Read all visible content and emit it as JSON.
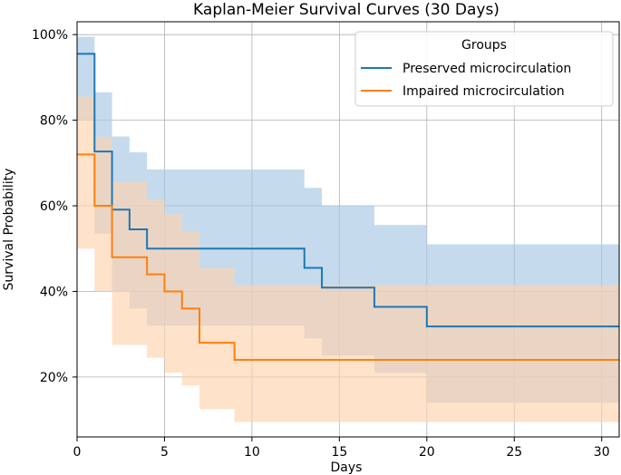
{
  "chart_data": {
    "type": "line",
    "title": "Kaplan-Meier Survival Curves (30 Days)",
    "xlabel": "Days",
    "ylabel": "Survival Probability",
    "xlim": [
      0,
      31
    ],
    "ylim": [
      0.06,
      1.03
    ],
    "x_ticks": [
      0,
      5,
      10,
      15,
      20,
      25,
      30
    ],
    "y_ticks": [
      0.2,
      0.4,
      0.6,
      0.8,
      1.0
    ],
    "y_tick_labels": [
      "20%",
      "40%",
      "60%",
      "80%",
      "100%"
    ],
    "grid": true,
    "legend": {
      "title": "Groups",
      "placement": "top-right"
    },
    "series": [
      {
        "name": "Preserved microcirculation",
        "color": "#1f77b4",
        "band_color": "#a6c8e3",
        "steps": [
          [
            0,
            0.955
          ],
          [
            1,
            0.727
          ],
          [
            2,
            0.591
          ],
          [
            3,
            0.545
          ],
          [
            4,
            0.5
          ],
          [
            13,
            0.455
          ],
          [
            14,
            0.409
          ],
          [
            17,
            0.364
          ],
          [
            20,
            0.318
          ],
          [
            31,
            0.318
          ]
        ],
        "lower": [
          [
            0,
            0.8
          ],
          [
            1,
            0.535
          ],
          [
            2,
            0.4
          ],
          [
            3,
            0.36
          ],
          [
            4,
            0.32
          ],
          [
            13,
            0.29
          ],
          [
            14,
            0.25
          ],
          [
            17,
            0.21
          ],
          [
            20,
            0.14
          ],
          [
            31,
            0.14
          ]
        ],
        "upper": [
          [
            0,
            0.995
          ],
          [
            1,
            0.865
          ],
          [
            2,
            0.762
          ],
          [
            3,
            0.725
          ],
          [
            4,
            0.685
          ],
          [
            13,
            0.642
          ],
          [
            14,
            0.6
          ],
          [
            17,
            0.555
          ],
          [
            20,
            0.51
          ],
          [
            31,
            0.51
          ]
        ]
      },
      {
        "name": "Impaired microcirculation",
        "color": "#ff7f0e",
        "band_color": "#fdd3ad",
        "steps": [
          [
            0,
            0.72
          ],
          [
            1,
            0.6
          ],
          [
            2,
            0.48
          ],
          [
            4,
            0.44
          ],
          [
            5,
            0.4
          ],
          [
            6,
            0.36
          ],
          [
            7,
            0.28
          ],
          [
            9,
            0.24
          ],
          [
            31,
            0.24
          ]
        ],
        "lower": [
          [
            0,
            0.5
          ],
          [
            1,
            0.4
          ],
          [
            2,
            0.275
          ],
          [
            4,
            0.245
          ],
          [
            5,
            0.21
          ],
          [
            6,
            0.18
          ],
          [
            7,
            0.125
          ],
          [
            9,
            0.095
          ],
          [
            31,
            0.095
          ]
        ],
        "upper": [
          [
            0,
            0.855
          ],
          [
            1,
            0.76
          ],
          [
            2,
            0.655
          ],
          [
            4,
            0.615
          ],
          [
            5,
            0.58
          ],
          [
            6,
            0.54
          ],
          [
            7,
            0.455
          ],
          [
            9,
            0.415
          ],
          [
            31,
            0.415
          ]
        ]
      }
    ]
  }
}
